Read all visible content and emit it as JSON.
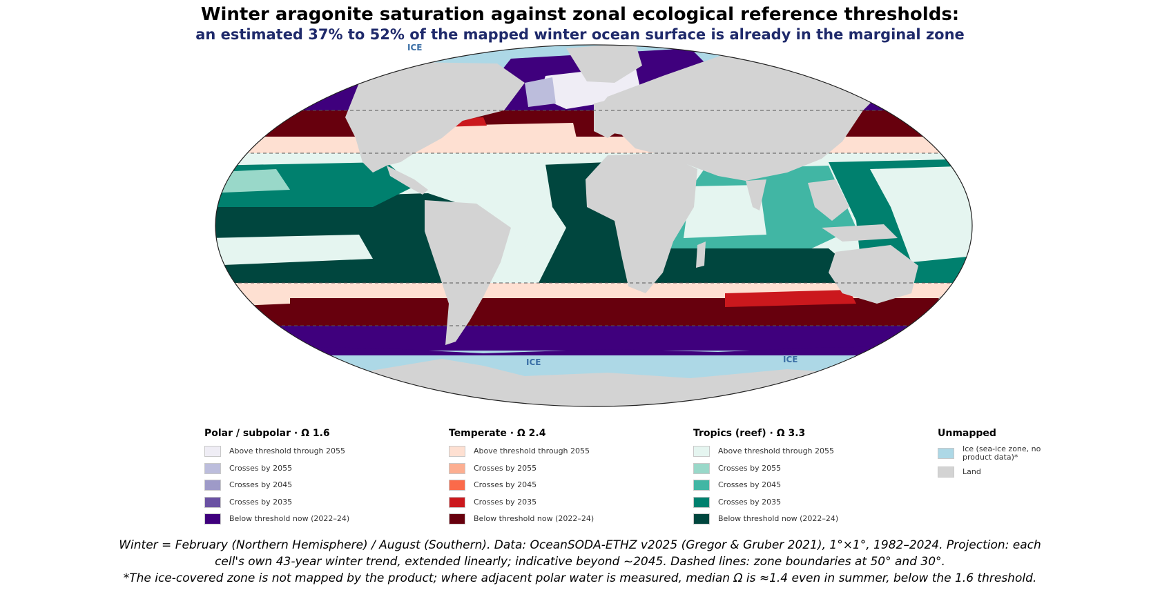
{
  "title": "Winter aragonite saturation against zonal ecological reference thresholds:",
  "subtitle": "an estimated 37% to 52% of the mapped winter ocean surface is already in the marginal zone",
  "map_labels": {
    "ice_north": "ICE",
    "ice_south_a": "ICE",
    "ice_south_b": "ICE"
  },
  "colors": {
    "polar": [
      "#efedf5",
      "#bcbddc",
      "#9e9ac8",
      "#6a51a3",
      "#3f007d"
    ],
    "temperate": [
      "#fee0d2",
      "#fcae91",
      "#fb6a4a",
      "#cb181d",
      "#67000d"
    ],
    "tropics": [
      "#e5f5f0",
      "#99d8c9",
      "#41b6a4",
      "#00806e",
      "#00463e"
    ],
    "ice": "#add8e6",
    "land": "#d3d3d3",
    "dashed_line": "#555555"
  },
  "legend": [
    {
      "header": "Polar / subpolar · Ω 1.6",
      "items": [
        {
          "label": "Above threshold through 2055",
          "color": "#efedf5"
        },
        {
          "label": "Crosses by 2055",
          "color": "#bcbddc"
        },
        {
          "label": "Crosses by 2045",
          "color": "#9e9ac8"
        },
        {
          "label": "Crosses by 2035",
          "color": "#6a51a3"
        },
        {
          "label": "Below threshold now (2022–24)",
          "color": "#3f007d"
        }
      ]
    },
    {
      "header": "Temperate · Ω 2.4",
      "items": [
        {
          "label": "Above threshold through 2055",
          "color": "#fee0d2"
        },
        {
          "label": "Crosses by 2055",
          "color": "#fcae91"
        },
        {
          "label": "Crosses by 2045",
          "color": "#fb6a4a"
        },
        {
          "label": "Crosses by 2035",
          "color": "#cb181d"
        },
        {
          "label": "Below threshold now (2022–24)",
          "color": "#67000d"
        }
      ]
    },
    {
      "header": "Tropics (reef) · Ω 3.3",
      "items": [
        {
          "label": "Above threshold through 2055",
          "color": "#e5f5f0"
        },
        {
          "label": "Crosses by 2055",
          "color": "#99d8c9"
        },
        {
          "label": "Crosses by 2045",
          "color": "#41b6a4"
        },
        {
          "label": "Crosses by 2035",
          "color": "#00806e"
        },
        {
          "label": "Below threshold now (2022–24)",
          "color": "#00463e"
        }
      ]
    },
    {
      "header": "Unmapped",
      "items": [
        {
          "label": "Ice (sea-ice zone, no product data)*",
          "color": "#add8e6"
        },
        {
          "label": "Land",
          "color": "#d3d3d3"
        }
      ]
    }
  ],
  "footnote": [
    "Winter = February (Northern Hemisphere) / August (Southern). Data: OceanSODA-ETHZ v2025 (Gregor & Gruber 2021), 1°×1°, 1982–2024. Projection: each",
    "cell's own 43-year winter trend, extended linearly; indicative beyond ~2045. Dashed lines: zone boundaries at 50° and 30°.",
    "*The ice-covered zone is not mapped by the product; where adjacent polar water is measured, median Ω is ≈1.4 even in summer, below the 1.6 threshold."
  ]
}
